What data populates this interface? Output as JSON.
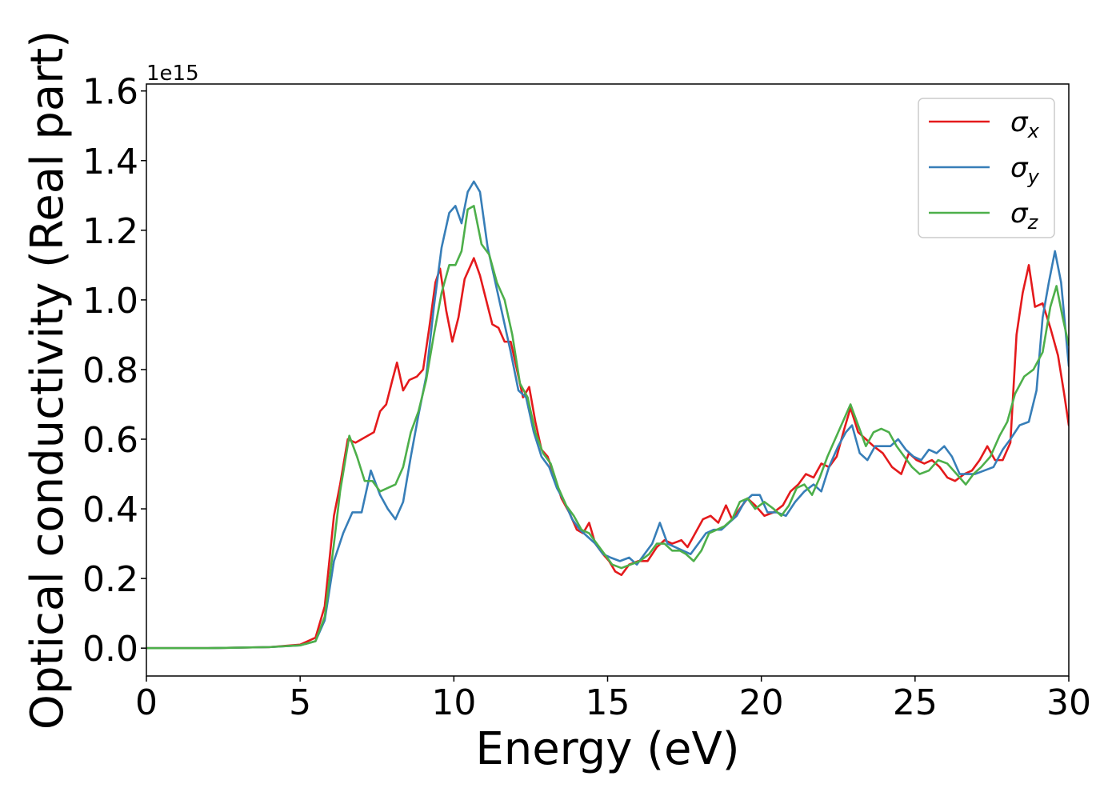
{
  "chart_data": {
    "type": "line",
    "xlabel": "Energy (eV)",
    "ylabel": "Optical conductivity (Real part)",
    "offset_text": "1e15",
    "xlim": [
      0,
      30
    ],
    "ylim": [
      -0.08,
      1.62
    ],
    "xticks": [
      0,
      5,
      10,
      15,
      20,
      25,
      30
    ],
    "xtick_labels": [
      "0",
      "5",
      "10",
      "15",
      "20",
      "25",
      "30"
    ],
    "yticks": [
      0.0,
      0.2,
      0.4,
      0.6,
      0.8,
      1.0,
      1.2,
      1.4,
      1.6
    ],
    "ytick_labels": [
      "0.0",
      "0.2",
      "0.4",
      "0.6",
      "0.8",
      "1.0",
      "1.2",
      "1.4",
      "1.6"
    ],
    "grid": false,
    "legend_position": "top-right",
    "series": [
      {
        "name": "σx",
        "name_base": "σ",
        "name_sub": "x",
        "color": "#e41a1c",
        "points": [
          [
            0,
            0
          ],
          [
            2,
            0
          ],
          [
            4,
            0.003
          ],
          [
            5,
            0.01
          ],
          [
            5.5,
            0.03
          ],
          [
            5.8,
            0.12
          ],
          [
            6.1,
            0.38
          ],
          [
            6.3,
            0.47
          ],
          [
            6.55,
            0.6
          ],
          [
            6.8,
            0.59
          ],
          [
            7.0,
            0.6
          ],
          [
            7.2,
            0.61
          ],
          [
            7.4,
            0.62
          ],
          [
            7.6,
            0.68
          ],
          [
            7.8,
            0.7
          ],
          [
            8.0,
            0.77
          ],
          [
            8.15,
            0.82
          ],
          [
            8.35,
            0.74
          ],
          [
            8.55,
            0.77
          ],
          [
            8.8,
            0.78
          ],
          [
            9.0,
            0.8
          ],
          [
            9.2,
            0.92
          ],
          [
            9.4,
            1.05
          ],
          [
            9.55,
            1.09
          ],
          [
            9.75,
            0.97
          ],
          [
            9.95,
            0.88
          ],
          [
            10.15,
            0.95
          ],
          [
            10.35,
            1.06
          ],
          [
            10.65,
            1.12
          ],
          [
            10.85,
            1.07
          ],
          [
            11.05,
            1.0
          ],
          [
            11.25,
            0.93
          ],
          [
            11.45,
            0.92
          ],
          [
            11.65,
            0.88
          ],
          [
            11.85,
            0.88
          ],
          [
            12.05,
            0.8
          ],
          [
            12.25,
            0.72
          ],
          [
            12.45,
            0.75
          ],
          [
            12.65,
            0.65
          ],
          [
            12.85,
            0.57
          ],
          [
            13.05,
            0.55
          ],
          [
            13.25,
            0.5
          ],
          [
            13.5,
            0.43
          ],
          [
            13.75,
            0.39
          ],
          [
            14.0,
            0.34
          ],
          [
            14.2,
            0.33
          ],
          [
            14.4,
            0.36
          ],
          [
            14.6,
            0.3
          ],
          [
            14.85,
            0.27
          ],
          [
            15.05,
            0.25
          ],
          [
            15.25,
            0.22
          ],
          [
            15.45,
            0.21
          ],
          [
            15.7,
            0.24
          ],
          [
            16.0,
            0.25
          ],
          [
            16.3,
            0.25
          ],
          [
            16.6,
            0.29
          ],
          [
            16.85,
            0.31
          ],
          [
            17.1,
            0.3
          ],
          [
            17.4,
            0.31
          ],
          [
            17.6,
            0.29
          ],
          [
            17.85,
            0.33
          ],
          [
            18.1,
            0.37
          ],
          [
            18.35,
            0.38
          ],
          [
            18.6,
            0.36
          ],
          [
            18.85,
            0.41
          ],
          [
            19.05,
            0.37
          ],
          [
            19.3,
            0.4
          ],
          [
            19.55,
            0.43
          ],
          [
            19.8,
            0.41
          ],
          [
            20.1,
            0.38
          ],
          [
            20.4,
            0.39
          ],
          [
            20.7,
            0.41
          ],
          [
            20.95,
            0.45
          ],
          [
            21.2,
            0.47
          ],
          [
            21.45,
            0.5
          ],
          [
            21.7,
            0.49
          ],
          [
            21.95,
            0.53
          ],
          [
            22.2,
            0.52
          ],
          [
            22.45,
            0.55
          ],
          [
            22.7,
            0.63
          ],
          [
            22.9,
            0.69
          ],
          [
            23.15,
            0.62
          ],
          [
            23.4,
            0.6
          ],
          [
            23.65,
            0.58
          ],
          [
            23.95,
            0.56
          ],
          [
            24.25,
            0.52
          ],
          [
            24.55,
            0.5
          ],
          [
            24.8,
            0.56
          ],
          [
            25.05,
            0.54
          ],
          [
            25.3,
            0.53
          ],
          [
            25.55,
            0.54
          ],
          [
            25.8,
            0.52
          ],
          [
            26.05,
            0.49
          ],
          [
            26.3,
            0.48
          ],
          [
            26.6,
            0.5
          ],
          [
            26.85,
            0.51
          ],
          [
            27.1,
            0.54
          ],
          [
            27.35,
            0.58
          ],
          [
            27.6,
            0.54
          ],
          [
            27.85,
            0.54
          ],
          [
            28.1,
            0.59
          ],
          [
            28.3,
            0.9
          ],
          [
            28.5,
            1.02
          ],
          [
            28.7,
            1.1
          ],
          [
            28.9,
            0.98
          ],
          [
            29.15,
            0.99
          ],
          [
            29.4,
            0.92
          ],
          [
            29.65,
            0.84
          ],
          [
            29.85,
            0.73
          ],
          [
            30.0,
            0.64
          ]
        ]
      },
      {
        "name": "σy",
        "name_base": "σ",
        "name_sub": "y",
        "color": "#377eb8",
        "points": [
          [
            0,
            0
          ],
          [
            2,
            0
          ],
          [
            4,
            0.003
          ],
          [
            5,
            0.008
          ],
          [
            5.5,
            0.02
          ],
          [
            5.8,
            0.08
          ],
          [
            6.1,
            0.25
          ],
          [
            6.4,
            0.33
          ],
          [
            6.7,
            0.39
          ],
          [
            7.0,
            0.39
          ],
          [
            7.3,
            0.51
          ],
          [
            7.6,
            0.44
          ],
          [
            7.85,
            0.4
          ],
          [
            8.1,
            0.37
          ],
          [
            8.35,
            0.42
          ],
          [
            8.6,
            0.55
          ],
          [
            8.85,
            0.67
          ],
          [
            9.1,
            0.78
          ],
          [
            9.35,
            0.98
          ],
          [
            9.6,
            1.15
          ],
          [
            9.85,
            1.25
          ],
          [
            10.05,
            1.27
          ],
          [
            10.25,
            1.22
          ],
          [
            10.45,
            1.31
          ],
          [
            10.65,
            1.34
          ],
          [
            10.85,
            1.31
          ],
          [
            11.1,
            1.15
          ],
          [
            11.35,
            1.05
          ],
          [
            11.6,
            0.95
          ],
          [
            11.85,
            0.85
          ],
          [
            12.1,
            0.74
          ],
          [
            12.35,
            0.72
          ],
          [
            12.6,
            0.62
          ],
          [
            12.85,
            0.55
          ],
          [
            13.1,
            0.52
          ],
          [
            13.35,
            0.46
          ],
          [
            13.6,
            0.42
          ],
          [
            13.85,
            0.37
          ],
          [
            14.1,
            0.34
          ],
          [
            14.35,
            0.32
          ],
          [
            14.6,
            0.3
          ],
          [
            14.85,
            0.27
          ],
          [
            15.1,
            0.26
          ],
          [
            15.4,
            0.25
          ],
          [
            15.7,
            0.26
          ],
          [
            15.95,
            0.24
          ],
          [
            16.2,
            0.27
          ],
          [
            16.45,
            0.3
          ],
          [
            16.7,
            0.36
          ],
          [
            16.95,
            0.3
          ],
          [
            17.2,
            0.29
          ],
          [
            17.45,
            0.28
          ],
          [
            17.7,
            0.27
          ],
          [
            17.95,
            0.3
          ],
          [
            18.2,
            0.33
          ],
          [
            18.45,
            0.34
          ],
          [
            18.7,
            0.34
          ],
          [
            18.95,
            0.36
          ],
          [
            19.2,
            0.38
          ],
          [
            19.45,
            0.42
          ],
          [
            19.7,
            0.44
          ],
          [
            19.95,
            0.44
          ],
          [
            20.2,
            0.39
          ],
          [
            20.5,
            0.39
          ],
          [
            20.8,
            0.38
          ],
          [
            21.1,
            0.42
          ],
          [
            21.4,
            0.45
          ],
          [
            21.7,
            0.47
          ],
          [
            21.95,
            0.45
          ],
          [
            22.2,
            0.52
          ],
          [
            22.5,
            0.58
          ],
          [
            22.75,
            0.62
          ],
          [
            22.95,
            0.64
          ],
          [
            23.2,
            0.56
          ],
          [
            23.45,
            0.54
          ],
          [
            23.7,
            0.58
          ],
          [
            23.95,
            0.58
          ],
          [
            24.2,
            0.58
          ],
          [
            24.45,
            0.6
          ],
          [
            24.7,
            0.57
          ],
          [
            24.95,
            0.55
          ],
          [
            25.2,
            0.54
          ],
          [
            25.45,
            0.57
          ],
          [
            25.7,
            0.56
          ],
          [
            25.95,
            0.58
          ],
          [
            26.2,
            0.55
          ],
          [
            26.45,
            0.5
          ],
          [
            26.7,
            0.5
          ],
          [
            26.95,
            0.5
          ],
          [
            27.25,
            0.51
          ],
          [
            27.55,
            0.52
          ],
          [
            27.85,
            0.57
          ],
          [
            28.1,
            0.6
          ],
          [
            28.4,
            0.64
          ],
          [
            28.7,
            0.65
          ],
          [
            28.95,
            0.74
          ],
          [
            29.15,
            0.95
          ],
          [
            29.35,
            1.05
          ],
          [
            29.55,
            1.14
          ],
          [
            29.75,
            1.05
          ],
          [
            30.0,
            0.81
          ]
        ]
      },
      {
        "name": "σz",
        "name_base": "σ",
        "name_sub": "z",
        "color": "#4daf4a",
        "points": [
          [
            0,
            0
          ],
          [
            2,
            0
          ],
          [
            4,
            0.003
          ],
          [
            5,
            0.008
          ],
          [
            5.5,
            0.02
          ],
          [
            5.8,
            0.09
          ],
          [
            6.1,
            0.3
          ],
          [
            6.3,
            0.45
          ],
          [
            6.6,
            0.61
          ],
          [
            6.85,
            0.55
          ],
          [
            7.1,
            0.48
          ],
          [
            7.35,
            0.48
          ],
          [
            7.6,
            0.45
          ],
          [
            7.85,
            0.46
          ],
          [
            8.1,
            0.47
          ],
          [
            8.35,
            0.52
          ],
          [
            8.6,
            0.62
          ],
          [
            8.85,
            0.68
          ],
          [
            9.1,
            0.77
          ],
          [
            9.35,
            0.9
          ],
          [
            9.6,
            1.02
          ],
          [
            9.85,
            1.1
          ],
          [
            10.05,
            1.1
          ],
          [
            10.25,
            1.14
          ],
          [
            10.45,
            1.26
          ],
          [
            10.65,
            1.27
          ],
          [
            10.9,
            1.16
          ],
          [
            11.15,
            1.13
          ],
          [
            11.4,
            1.05
          ],
          [
            11.65,
            1.0
          ],
          [
            11.9,
            0.9
          ],
          [
            12.15,
            0.76
          ],
          [
            12.4,
            0.72
          ],
          [
            12.65,
            0.62
          ],
          [
            12.9,
            0.56
          ],
          [
            13.15,
            0.53
          ],
          [
            13.4,
            0.46
          ],
          [
            13.65,
            0.41
          ],
          [
            13.9,
            0.38
          ],
          [
            14.15,
            0.34
          ],
          [
            14.4,
            0.33
          ],
          [
            14.65,
            0.3
          ],
          [
            14.9,
            0.27
          ],
          [
            15.15,
            0.24
          ],
          [
            15.45,
            0.23
          ],
          [
            15.75,
            0.24
          ],
          [
            16.05,
            0.25
          ],
          [
            16.35,
            0.27
          ],
          [
            16.6,
            0.3
          ],
          [
            16.85,
            0.3
          ],
          [
            17.1,
            0.28
          ],
          [
            17.35,
            0.28
          ],
          [
            17.55,
            0.27
          ],
          [
            17.8,
            0.25
          ],
          [
            18.05,
            0.28
          ],
          [
            18.3,
            0.33
          ],
          [
            18.55,
            0.34
          ],
          [
            18.8,
            0.35
          ],
          [
            19.05,
            0.37
          ],
          [
            19.3,
            0.42
          ],
          [
            19.55,
            0.43
          ],
          [
            19.8,
            0.4
          ],
          [
            20.1,
            0.42
          ],
          [
            20.4,
            0.4
          ],
          [
            20.65,
            0.38
          ],
          [
            20.9,
            0.41
          ],
          [
            21.15,
            0.46
          ],
          [
            21.4,
            0.47
          ],
          [
            21.65,
            0.44
          ],
          [
            21.9,
            0.49
          ],
          [
            22.15,
            0.55
          ],
          [
            22.45,
            0.61
          ],
          [
            22.7,
            0.66
          ],
          [
            22.9,
            0.7
          ],
          [
            23.15,
            0.64
          ],
          [
            23.4,
            0.58
          ],
          [
            23.65,
            0.62
          ],
          [
            23.9,
            0.63
          ],
          [
            24.15,
            0.62
          ],
          [
            24.4,
            0.58
          ],
          [
            24.65,
            0.55
          ],
          [
            24.9,
            0.52
          ],
          [
            25.15,
            0.5
          ],
          [
            25.45,
            0.51
          ],
          [
            25.75,
            0.54
          ],
          [
            26.05,
            0.53
          ],
          [
            26.35,
            0.5
          ],
          [
            26.65,
            0.47
          ],
          [
            26.9,
            0.5
          ],
          [
            27.15,
            0.52
          ],
          [
            27.45,
            0.55
          ],
          [
            27.75,
            0.61
          ],
          [
            28.0,
            0.65
          ],
          [
            28.25,
            0.73
          ],
          [
            28.55,
            0.78
          ],
          [
            28.85,
            0.8
          ],
          [
            29.15,
            0.85
          ],
          [
            29.4,
            0.98
          ],
          [
            29.6,
            1.04
          ],
          [
            29.8,
            0.95
          ],
          [
            30.0,
            0.87
          ]
        ]
      }
    ]
  }
}
